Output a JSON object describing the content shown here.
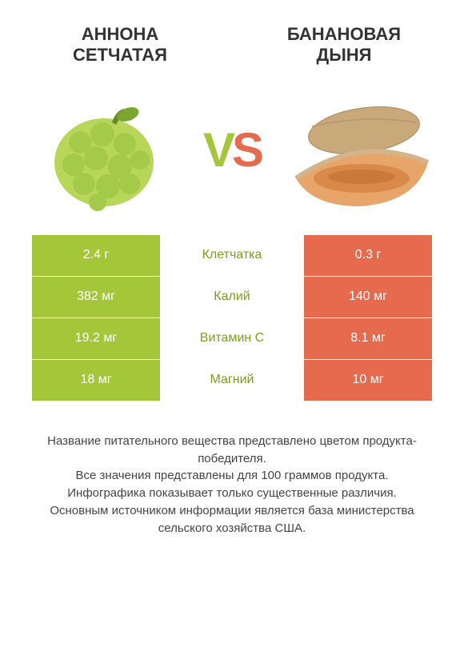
{
  "left_product": {
    "title": "АННОНА\nСЕТЧАТАЯ",
    "color": "#a4c639"
  },
  "right_product": {
    "title": "БАНАНОВАЯ\nДЫНЯ",
    "color": "#e66a4e"
  },
  "vs_label": {
    "v": "V",
    "s": "S"
  },
  "rows": [
    {
      "label": "Клетчатка",
      "left": "2.4 г",
      "right": "0.3 г",
      "winner": "left"
    },
    {
      "label": "Калий",
      "left": "382 мг",
      "right": "140 мг",
      "winner": "left"
    },
    {
      "label": "Витамин C",
      "left": "19.2 мг",
      "right": "8.1 мг",
      "winner": "left"
    },
    {
      "label": "Магний",
      "left": "18 мг",
      "right": "10 мг",
      "winner": "left"
    }
  ],
  "footnote": "Название питательного вещества представлено цветом продукта-победителя.\nВсе значения представлены для 100 граммов продукта.\nИнфографика показывает только существенные различия.\nОсновным источником информации является база министерства сельского хозяйства США.",
  "style": {
    "left_color": "#a4c639",
    "right_color": "#e66a4e",
    "label_winner_left_color": "#7a9e1e",
    "background": "#ffffff",
    "title_fontsize": 22,
    "cell_fontsize": 16,
    "footnote_fontsize": 15,
    "vs_fontsize": 60
  }
}
